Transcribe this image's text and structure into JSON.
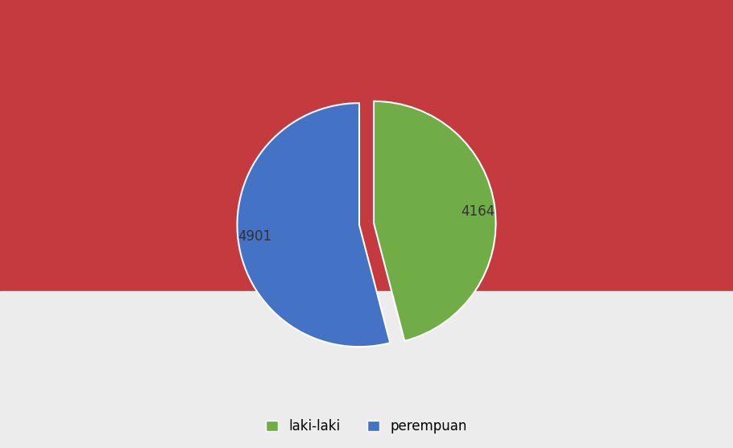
{
  "chart_data": {
    "type": "pie",
    "categories": [
      "laki-laki",
      "perempuan"
    ],
    "values": [
      4164,
      4901
    ],
    "colors": [
      "#70ad47",
      "#4472c4"
    ],
    "data_labels": true,
    "legend": "bottom"
  }
}
